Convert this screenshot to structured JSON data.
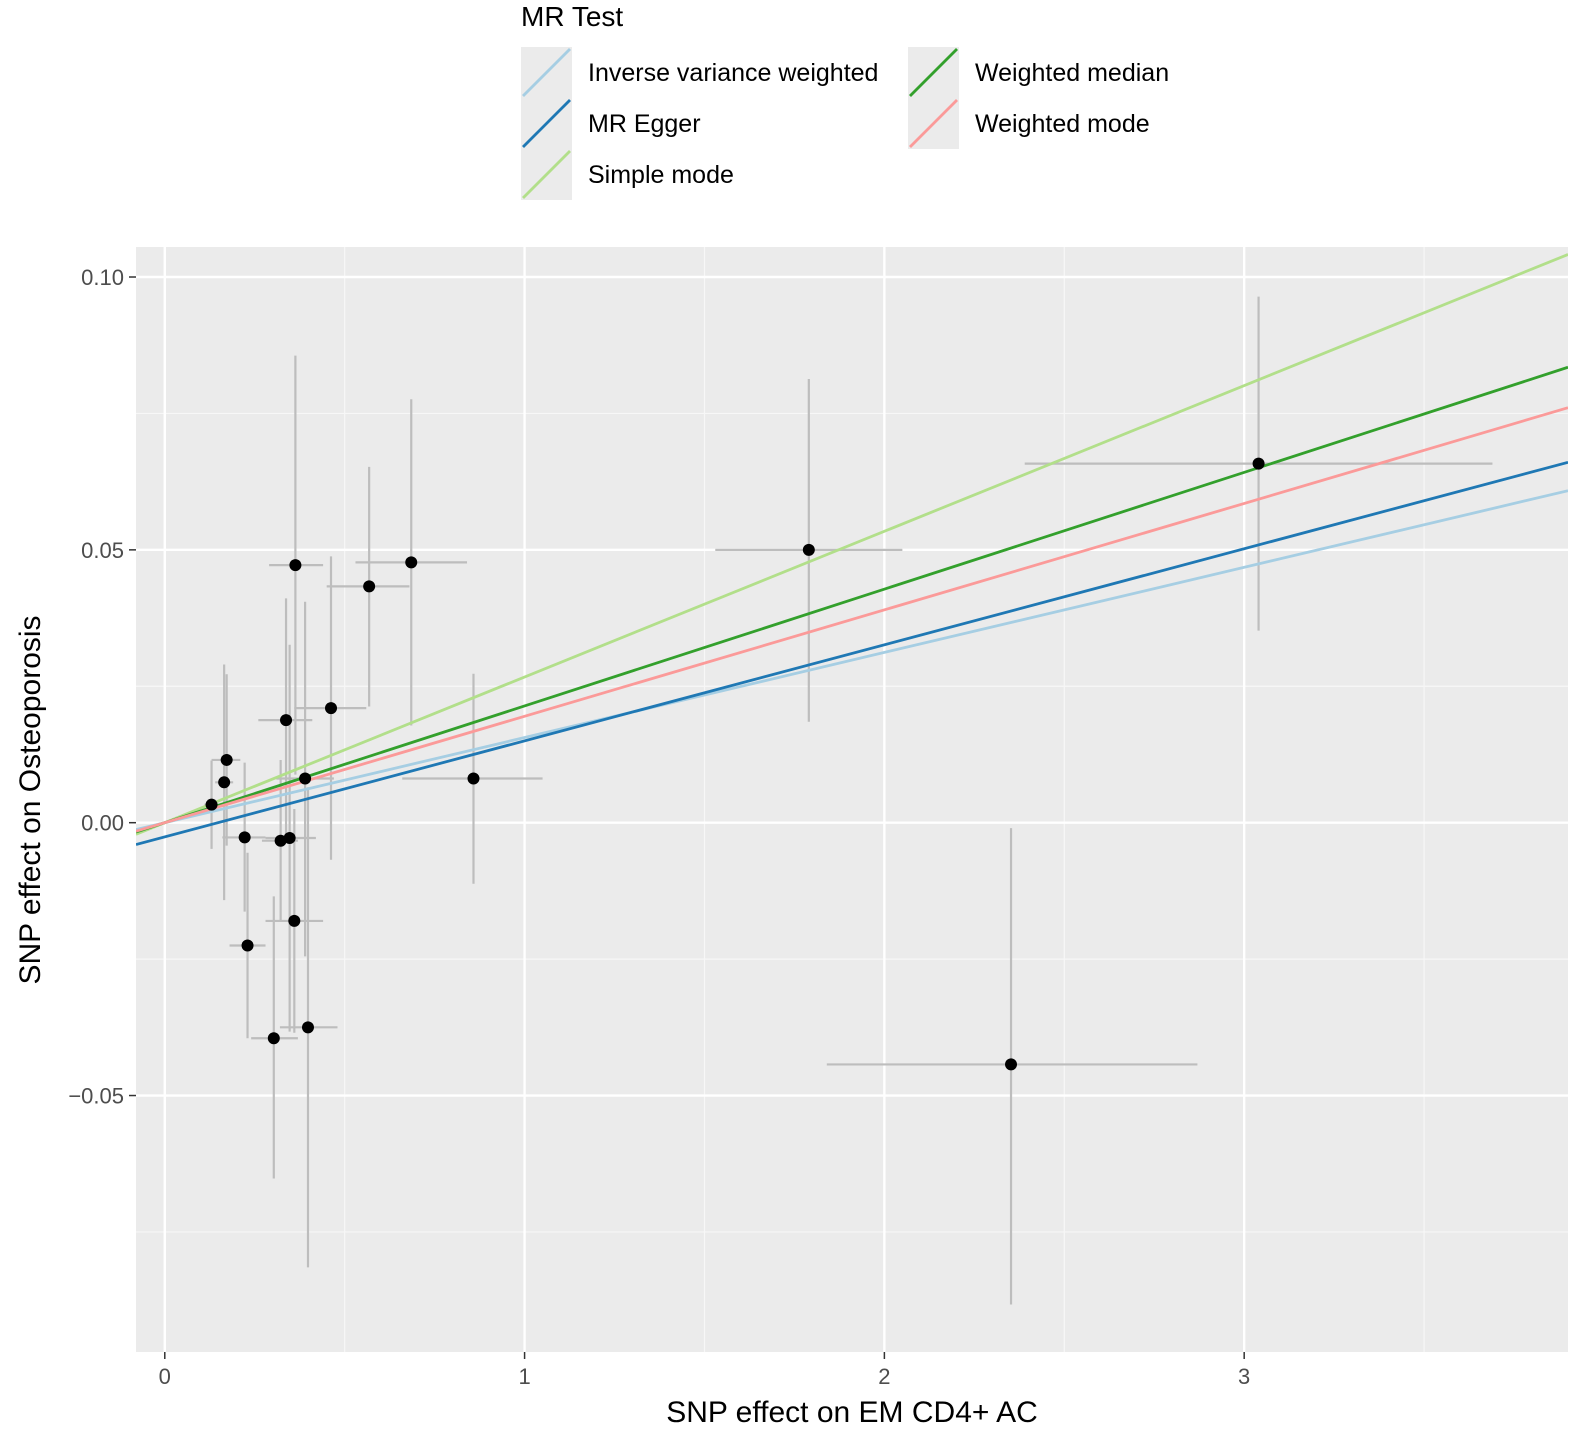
{
  "chart_data": {
    "type": "scatter",
    "xlabel": "SNP effect on EM CD4+ AC",
    "ylabel": "SNP effect on Osteoporosis",
    "xlim": [
      -0.08,
      3.9
    ],
    "ylim": [
      -0.097,
      0.1055
    ],
    "x_ticks": [
      {
        "value": 0,
        "label": "0"
      },
      {
        "value": 1,
        "label": "1"
      },
      {
        "value": 2,
        "label": "2"
      },
      {
        "value": 3,
        "label": "3"
      }
    ],
    "y_ticks": [
      {
        "value": 0.1,
        "label": "0.10"
      },
      {
        "value": 0.05,
        "label": "0.05"
      },
      {
        "value": 0.0,
        "label": "0.00"
      },
      {
        "value": -0.05,
        "label": "−0.05"
      }
    ],
    "x_minor": [
      0.5,
      1.5,
      2.5,
      3.5
    ],
    "y_minor": [
      0.075,
      0.025,
      -0.025,
      -0.075
    ],
    "grid": true,
    "legend": {
      "title": "MR Test",
      "position": "top",
      "entries": [
        {
          "label": "Inverse variance weighted",
          "color": "#a6cee3"
        },
        {
          "label": "MR Egger",
          "color": "#1f78b4"
        },
        {
          "label": "Simple mode",
          "color": "#b2df8a"
        },
        {
          "label": "Weighted median",
          "color": "#33a02c"
        },
        {
          "label": "Weighted mode",
          "color": "#fb9a99"
        }
      ]
    },
    "lines": [
      {
        "name": "Inverse variance weighted",
        "color": "#a6cee3",
        "intercept": 0,
        "slope": 0.0156
      },
      {
        "name": "MR Egger",
        "color": "#1f78b4",
        "intercept": -0.0026,
        "slope": 0.0176
      },
      {
        "name": "Simple mode",
        "color": "#b2df8a",
        "intercept": 0,
        "slope": 0.0267
      },
      {
        "name": "Weighted median",
        "color": "#33a02c",
        "intercept": 0,
        "slope": 0.0214
      },
      {
        "name": "Weighted mode",
        "color": "#fb9a99",
        "intercept": 0,
        "slope": 0.0195
      }
    ],
    "points": [
      {
        "x": 0.13,
        "y": 0.0033,
        "xlo": 0.11,
        "xhi": 0.15,
        "ylo": -0.0048,
        "yhi": 0.0114
      },
      {
        "x": 0.165,
        "y": 0.0074,
        "xlo": 0.14,
        "xhi": 0.19,
        "ylo": -0.0142,
        "yhi": 0.029
      },
      {
        "x": 0.172,
        "y": 0.0115,
        "xlo": 0.13,
        "xhi": 0.21,
        "ylo": -0.0042,
        "yhi": 0.0272
      },
      {
        "x": 0.222,
        "y": -0.0027,
        "xlo": 0.16,
        "xhi": 0.28,
        "ylo": -0.0163,
        "yhi": 0.011
      },
      {
        "x": 0.23,
        "y": -0.0225,
        "xlo": 0.18,
        "xhi": 0.28,
        "ylo": -0.0395,
        "yhi": -0.0055
      },
      {
        "x": 0.303,
        "y": -0.0395,
        "xlo": 0.24,
        "xhi": 0.37,
        "ylo": -0.0652,
        "yhi": -0.0135
      },
      {
        "x": 0.322,
        "y": -0.0033,
        "xlo": 0.27,
        "xhi": 0.37,
        "ylo": -0.0182,
        "yhi": 0.0115
      },
      {
        "x": 0.337,
        "y": 0.0188,
        "xlo": 0.26,
        "xhi": 0.41,
        "ylo": -0.0035,
        "yhi": 0.0411
      },
      {
        "x": 0.347,
        "y": -0.0028,
        "xlo": 0.28,
        "xhi": 0.42,
        "ylo": -0.0383,
        "yhi": 0.0326
      },
      {
        "x": 0.36,
        "y": -0.018,
        "xlo": 0.28,
        "xhi": 0.44,
        "ylo": -0.0385,
        "yhi": 0.0025
      },
      {
        "x": 0.363,
        "y": 0.0472,
        "xlo": 0.29,
        "xhi": 0.44,
        "ylo": 0.0088,
        "yhi": 0.0856
      },
      {
        "x": 0.39,
        "y": 0.0081,
        "xlo": 0.31,
        "xhi": 0.47,
        "ylo": -0.0245,
        "yhi": 0.0405
      },
      {
        "x": 0.398,
        "y": -0.0375,
        "xlo": 0.32,
        "xhi": 0.48,
        "ylo": -0.0815,
        "yhi": 0.0065
      },
      {
        "x": 0.462,
        "y": 0.021,
        "xlo": 0.36,
        "xhi": 0.56,
        "ylo": -0.0068,
        "yhi": 0.0488
      },
      {
        "x": 0.568,
        "y": 0.0433,
        "xlo": 0.45,
        "xhi": 0.68,
        "ylo": 0.0213,
        "yhi": 0.0652
      },
      {
        "x": 0.685,
        "y": 0.0477,
        "xlo": 0.53,
        "xhi": 0.84,
        "ylo": 0.0178,
        "yhi": 0.0776
      },
      {
        "x": 0.858,
        "y": 0.0081,
        "xlo": 0.66,
        "xhi": 1.05,
        "ylo": -0.0112,
        "yhi": 0.0273
      },
      {
        "x": 1.79,
        "y": 0.05,
        "xlo": 1.53,
        "xhi": 2.05,
        "ylo": 0.0185,
        "yhi": 0.0813
      },
      {
        "x": 2.352,
        "y": -0.0443,
        "xlo": 1.84,
        "xhi": 2.87,
        "ylo": -0.0883,
        "yhi": -0.001
      },
      {
        "x": 3.04,
        "y": 0.0658,
        "xlo": 2.39,
        "xhi": 3.69,
        "ylo": 0.0352,
        "yhi": 0.0964
      }
    ]
  }
}
